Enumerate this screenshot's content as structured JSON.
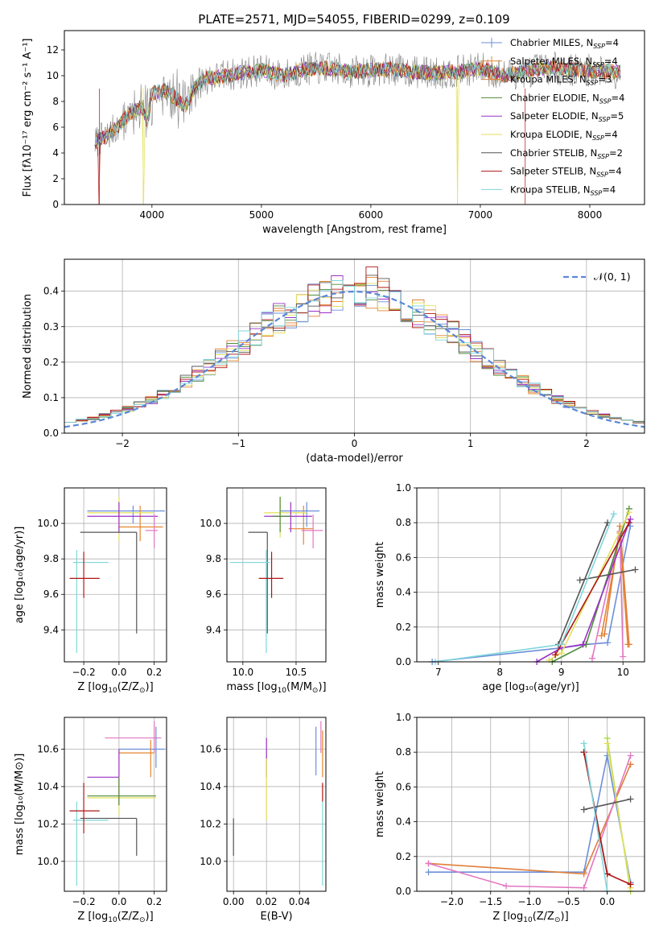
{
  "figure_title": "PLATE=2571, MJD=54055, FIBERID=0299, z=0.109",
  "colors": {
    "Chabrier MILES": "#6b8fd8",
    "Salpeter MILES": "#e6862f",
    "Kroupa MILES": "#e07f3a",
    "Chabrier ELODIE": "#4f8a3c",
    "Salpeter ELODIE": "#9b30c8",
    "Kroupa ELODIE": "#e3e05a",
    "Chabrier STELIB": "#555555",
    "Salpeter STELIB": "#b01515",
    "Kroupa STELIB": "#7fd6dc",
    "spectrum_grey": "#808080",
    "gauss": "#5b87d6",
    "pink": "#e377c2",
    "lime": "#a8d84a"
  },
  "chart_data": [
    {
      "id": "spectrum",
      "type": "line",
      "title": "PLATE=2571, MJD=54055, FIBERID=0299, z=0.109",
      "xlabel": "wavelength [Angstrom, rest frame]",
      "ylabel": "Flux [fλ10⁻¹⁷ erg cm⁻² s⁻¹ A⁻¹]",
      "xlim": [
        3200,
        8500
      ],
      "ylim": [
        0,
        13.5
      ],
      "xticks": [
        4000,
        5000,
        6000,
        7000,
        8000
      ],
      "yticks": [
        0,
        2,
        4,
        6,
        8,
        10,
        12
      ],
      "legend_position": "right",
      "legend": [
        {
          "label": "Chabrier MILES, N",
          "sub": "SSP",
          "suffix": "=4"
        },
        {
          "label": "Salpeter MILES, N",
          "sub": "SSP",
          "suffix": "=4"
        },
        {
          "label": "Kroupa MILES, N",
          "sub": "SSP",
          "suffix": "=3"
        },
        {
          "label": "Chabrier ELODIE, N",
          "sub": "SSP",
          "suffix": "=4"
        },
        {
          "label": "Salpeter ELODIE, N",
          "sub": "SSP",
          "suffix": "=5"
        },
        {
          "label": "Kroupa ELODIE, N",
          "sub": "SSP",
          "suffix": "=4"
        },
        {
          "label": "Chabrier STELIB, N",
          "sub": "SSP",
          "suffix": "=2"
        },
        {
          "label": "Salpeter STELIB, N",
          "sub": "SSP",
          "suffix": "=4"
        },
        {
          "label": "Kroupa STELIB, N",
          "sub": "SSP",
          "suffix": "=4"
        }
      ],
      "continuum": {
        "x": [
          3480,
          3600,
          3700,
          3800,
          3900,
          3960,
          4000,
          4100,
          4200,
          4300,
          4400,
          4500,
          4600,
          4800,
          5000,
          5200,
          5400,
          5600,
          5800,
          6000,
          6200,
          6400,
          6600,
          6800,
          7000,
          7200,
          7400,
          7600,
          7800,
          8000,
          8200,
          8280
        ],
        "y": [
          4.8,
          5.4,
          6.2,
          7.0,
          7.6,
          6.4,
          8.6,
          8.9,
          8.4,
          7.6,
          9.2,
          9.8,
          9.9,
          10.2,
          10.4,
          10.0,
          10.5,
          10.6,
          10.3,
          10.4,
          10.5,
          10.3,
          10.2,
          10.3,
          10.6,
          10.0,
          10.3,
          10.6,
          10.5,
          10.4,
          10.3,
          10.3
        ]
      },
      "dropouts": [
        {
          "series": "Salpeter STELIB",
          "x": 3520
        },
        {
          "series": "Kroupa ELODIE",
          "x": 3920
        },
        {
          "series": "Kroupa ELODIE",
          "x": 6790
        },
        {
          "series": "Salpeter STELIB",
          "x": 7410
        }
      ]
    },
    {
      "id": "residuals",
      "type": "step",
      "xlabel": "(data-model)/error",
      "ylabel": "Normed distribution",
      "xlim": [
        -2.5,
        2.5
      ],
      "ylim": [
        0,
        0.49
      ],
      "xticks": [
        -2,
        -1,
        0,
        1,
        2
      ],
      "yticks": [
        0.0,
        0.1,
        0.2,
        0.3,
        0.4
      ],
      "bin_width": 0.1,
      "legend": "𝒩(0, 1)",
      "legend_position": "top-right",
      "gauss": {
        "mean": 0,
        "sigma": 1
      }
    },
    {
      "id": "age_vs_Z",
      "type": "errorbar",
      "xlabel_main": "Z [log",
      "xlabel_sub": "10",
      "xlabel_rest": "(Z/Z",
      "xlabel_end": ")]",
      "ylabel": "age  [log₁₀(age/yr)]",
      "xlim": [
        -0.31,
        0.27
      ],
      "ylim": [
        9.22,
        10.2
      ],
      "xticks": [
        -0.2,
        0.0,
        0.2
      ],
      "yticks": [
        9.4,
        9.6,
        9.8,
        10.0
      ],
      "points": [
        {
          "c": "Chabrier MILES",
          "x": 0.08,
          "y": 10.07,
          "xlo": -0.18,
          "xhi": 0.26,
          "ylo": 10.0,
          "yhi": 10.1
        },
        {
          "c": "Salpeter MILES",
          "x": 0.12,
          "y": 9.98,
          "xlo": 0.0,
          "xhi": 0.25,
          "ylo": 9.9,
          "yhi": 10.1
        },
        {
          "c": "Kroupa ELODIE",
          "x": 0.0,
          "y": 10.06,
          "xlo": -0.18,
          "xhi": 0.2,
          "ylo": 9.9,
          "yhi": 10.15
        },
        {
          "c": "Salpeter ELODIE",
          "x": 0.0,
          "y": 10.04,
          "xlo": -0.18,
          "xhi": 0.22,
          "ylo": 9.95,
          "yhi": 10.12
        },
        {
          "c": "Chabrier STELIB",
          "x": 0.1,
          "y": 9.95,
          "xlo": -0.22,
          "xhi": 0.1,
          "ylo": 9.38,
          "yhi": 9.95
        },
        {
          "c": "Kroupa STELIB",
          "x": -0.24,
          "y": 9.78,
          "xlo": -0.26,
          "xhi": -0.06,
          "ylo": 9.27,
          "yhi": 9.85
        },
        {
          "c": "Salpeter STELIB",
          "x": -0.2,
          "y": 9.69,
          "xlo": -0.28,
          "xhi": -0.11,
          "ylo": 9.58,
          "yhi": 9.84
        },
        {
          "c": "pink",
          "x": 0.2,
          "y": 9.96,
          "xlo": 0.15,
          "xhi": 0.22,
          "ylo": 9.86,
          "yhi": 10.05
        }
      ]
    },
    {
      "id": "age_vs_mass",
      "type": "errorbar",
      "xlabel_main": "mass [log",
      "xlabel_sub": "10",
      "xlabel_rest": "(M/M",
      "xlabel_end": ")]",
      "xlim": [
        9.85,
        10.78
      ],
      "ylim": [
        9.22,
        10.2
      ],
      "xticks": [
        10.0,
        10.5
      ],
      "yticks": [
        9.4,
        9.6,
        9.8,
        10.0
      ],
      "points": [
        {
          "c": "Chabrier MILES",
          "x": 10.6,
          "y": 10.07,
          "xlo": 10.35,
          "xhi": 10.72,
          "ylo": 9.98,
          "yhi": 10.12
        },
        {
          "c": "Salpeter MILES",
          "x": 10.57,
          "y": 9.97,
          "xlo": 10.43,
          "xhi": 10.66,
          "ylo": 9.88,
          "yhi": 10.1
        },
        {
          "c": "pink",
          "x": 10.66,
          "y": 9.96,
          "xlo": 10.55,
          "xhi": 10.75,
          "ylo": 9.86,
          "yhi": 10.05
        },
        {
          "c": "Kroupa ELODIE",
          "x": 10.35,
          "y": 10.06,
          "xlo": 10.2,
          "xhi": 10.6,
          "ylo": 9.92,
          "yhi": 10.15
        },
        {
          "c": "Salpeter ELODIE",
          "x": 10.45,
          "y": 10.04,
          "xlo": 10.2,
          "xhi": 10.65,
          "ylo": 9.95,
          "yhi": 10.12
        },
        {
          "c": "Chabrier ELODIE",
          "x": 10.35,
          "y": 10.04,
          "xlo": 10.28,
          "xhi": 10.45,
          "ylo": 9.95,
          "yhi": 10.15
        },
        {
          "c": "Chabrier STELIB",
          "x": 10.23,
          "y": 9.95,
          "xlo": 10.05,
          "xhi": 10.23,
          "ylo": 9.38,
          "yhi": 9.95
        },
        {
          "c": "Kroupa STELIB",
          "x": 10.22,
          "y": 9.78,
          "xlo": 9.88,
          "xhi": 10.25,
          "ylo": 9.27,
          "yhi": 9.85
        },
        {
          "c": "Salpeter STELIB",
          "x": 10.27,
          "y": 9.69,
          "xlo": 10.15,
          "xhi": 10.38,
          "ylo": 9.58,
          "yhi": 9.84
        }
      ]
    },
    {
      "id": "weight_vs_age",
      "type": "line",
      "xlabel": "age  [log₁₀(age/yr)]",
      "ylabel": "mass weight",
      "xlim": [
        6.65,
        10.35
      ],
      "ylim": [
        0,
        1.0
      ],
      "xticks": [
        7,
        8,
        9,
        10
      ],
      "yticks": [
        0.0,
        0.2,
        0.4,
        0.6,
        0.8,
        1.0
      ],
      "series": [
        {
          "c": "Chabrier MILES",
          "x": [
            6.9,
            9.0,
            9.4,
            9.75,
            10.12
          ],
          "y": [
            0.0,
            0.08,
            0.1,
            0.11,
            0.78
          ]
        },
        {
          "c": "Salpeter MILES",
          "x": [
            9.65,
            9.95,
            10.08
          ],
          "y": [
            0.15,
            0.74,
            0.1
          ]
        },
        {
          "c": "Kroupa MILES",
          "x": [
            9.7,
            9.95,
            10.1
          ],
          "y": [
            0.16,
            0.78,
            0.1
          ]
        },
        {
          "c": "pink",
          "x": [
            9.5,
            9.95,
            10.0
          ],
          "y": [
            0.02,
            0.75,
            0.03
          ]
        },
        {
          "c": "Chabrier ELODIE",
          "x": [
            8.85,
            9.4,
            10.1
          ],
          "y": [
            0.0,
            0.1,
            0.88
          ]
        },
        {
          "c": "Salpeter ELODIE",
          "x": [
            8.6,
            9.0,
            9.35,
            10.12
          ],
          "y": [
            0.0,
            0.08,
            0.1,
            0.82
          ]
        },
        {
          "c": "Kroupa ELODIE",
          "x": [
            8.8,
            9.0,
            10.1
          ],
          "y": [
            0.01,
            0.05,
            0.86
          ]
        },
        {
          "c": "Chabrier STELIB",
          "x": [
            9.3,
            10.2
          ],
          "y": [
            0.47,
            0.53
          ]
        },
        {
          "c": "Chabrier STELIB",
          "x": [
            8.95,
            9.75
          ],
          "y": [
            0.1,
            0.8
          ]
        },
        {
          "c": "Salpeter STELIB",
          "x": [
            8.9,
            9.0,
            10.1
          ],
          "y": [
            0.04,
            0.1,
            0.8
          ]
        },
        {
          "c": "Kroupa STELIB",
          "x": [
            6.95,
            9.0,
            9.85
          ],
          "y": [
            0.0,
            0.1,
            0.85
          ]
        }
      ]
    },
    {
      "id": "mass_vs_Z",
      "type": "errorbar",
      "xlabel_main": "Z [log",
      "xlabel_sub": "10",
      "xlabel_rest": "(Z/Z",
      "xlabel_end": ")]",
      "ylabel": "mass [log₁₀(M/M⊙)]",
      "xlim": [
        -0.31,
        0.27
      ],
      "ylim": [
        9.84,
        10.77
      ],
      "xticks": [
        -0.2,
        0.0,
        0.2
      ],
      "yticks": [
        10.0,
        10.2,
        10.4,
        10.6
      ],
      "points": [
        {
          "c": "pink",
          "x": 0.2,
          "y": 10.66,
          "xlo": -0.08,
          "xhi": 0.24,
          "ylo": 10.58,
          "yhi": 10.75
        },
        {
          "c": "Chabrier MILES",
          "x": 0.21,
          "y": 10.6,
          "xlo": 0.0,
          "xhi": 0.26,
          "ylo": 10.5,
          "yhi": 10.72
        },
        {
          "c": "Salpeter MILES",
          "x": 0.18,
          "y": 10.58,
          "xlo": 0.0,
          "xhi": 0.2,
          "ylo": 10.45,
          "yhi": 10.65
        },
        {
          "c": "Salpeter ELODIE",
          "x": 0.0,
          "y": 10.45,
          "xlo": -0.18,
          "xhi": 0.0,
          "ylo": 10.3,
          "yhi": 10.6
        },
        {
          "c": "Kroupa ELODIE",
          "x": 0.0,
          "y": 10.34,
          "xlo": -0.18,
          "xhi": 0.21,
          "ylo": 10.25,
          "yhi": 10.45
        },
        {
          "c": "Chabrier ELODIE",
          "x": 0.0,
          "y": 10.35,
          "xlo": -0.18,
          "xhi": 0.21,
          "ylo": 10.3,
          "yhi": 10.45
        },
        {
          "c": "Chabrier STELIB",
          "x": 0.1,
          "y": 10.23,
          "xlo": -0.22,
          "xhi": 0.1,
          "ylo": 10.03,
          "yhi": 10.23
        },
        {
          "c": "Kroupa STELIB",
          "x": -0.24,
          "y": 10.22,
          "xlo": -0.26,
          "xhi": -0.06,
          "ylo": 9.87,
          "yhi": 10.32
        },
        {
          "c": "Salpeter STELIB",
          "x": -0.2,
          "y": 10.27,
          "xlo": -0.28,
          "xhi": -0.11,
          "ylo": 10.15,
          "yhi": 10.42
        }
      ]
    },
    {
      "id": "mass_vs_EBV",
      "type": "errorbar",
      "xlabel": "E(B-V)",
      "xlim": [
        -0.004,
        0.056
      ],
      "ylim": [
        9.84,
        10.77
      ],
      "xticks": [
        0.0,
        0.02,
        0.04
      ],
      "yticks": [
        10.0,
        10.2,
        10.4,
        10.6
      ],
      "points": [
        {
          "c": "Chabrier STELIB",
          "x": 0.0,
          "y": 10.23,
          "ylo": 10.03,
          "yhi": 10.23
        },
        {
          "c": "Salpeter ELODIE",
          "x": 0.02,
          "y": 10.55,
          "ylo": 10.45,
          "yhi": 10.66
        },
        {
          "c": "Kroupa ELODIE",
          "x": 0.02,
          "y": 10.35,
          "ylo": 10.22,
          "yhi": 10.55
        },
        {
          "c": "Chabrier MILES",
          "x": 0.05,
          "y": 10.6,
          "ylo": 10.46,
          "yhi": 10.72
        },
        {
          "c": "pink",
          "x": 0.053,
          "y": 10.66,
          "ylo": 10.58,
          "yhi": 10.75
        },
        {
          "c": "Salpeter MILES",
          "x": 0.054,
          "y": 10.58,
          "ylo": 10.45,
          "yhi": 10.7
        },
        {
          "c": "Salpeter STELIB",
          "x": 0.054,
          "y": 10.35,
          "ylo": 10.32,
          "yhi": 10.42
        },
        {
          "c": "Kroupa STELIB",
          "x": 0.054,
          "y": 10.2,
          "ylo": 9.87,
          "yhi": 10.32
        }
      ]
    },
    {
      "id": "weight_vs_Z",
      "type": "line",
      "xlabel_main": "Z [log",
      "xlabel_sub": "10",
      "xlabel_rest": "(Z/Z",
      "xlabel_end": ")]",
      "ylabel": "mass weight",
      "xlim": [
        -2.45,
        0.48
      ],
      "ylim": [
        0,
        1.0
      ],
      "xticks": [
        -2.0,
        -1.5,
        -1.0,
        -0.5,
        0.0
      ],
      "yticks": [
        0.0,
        0.2,
        0.4,
        0.6,
        0.8,
        1.0
      ],
      "series": [
        {
          "c": "Chabrier MILES",
          "x": [
            -2.3,
            -0.3,
            0.0,
            0.3
          ],
          "y": [
            0.11,
            0.11,
            0.78,
            0.05
          ]
        },
        {
          "c": "Kroupa MILES",
          "x": [
            -2.3,
            -0.3,
            0.3
          ],
          "y": [
            0.16,
            0.1,
            0.73
          ]
        },
        {
          "c": "pink",
          "x": [
            -2.3,
            -1.3,
            -0.3,
            0.3
          ],
          "y": [
            0.16,
            0.03,
            0.02,
            0.78
          ]
        },
        {
          "c": "lime",
          "x": [
            0.0,
            0.3
          ],
          "y": [
            0.88,
            0.0
          ]
        },
        {
          "c": "Kroupa ELODIE",
          "x": [
            0.0,
            0.3
          ],
          "y": [
            0.85,
            0.02
          ]
        },
        {
          "c": "Chabrier STELIB",
          "x": [
            -0.3,
            0.3
          ],
          "y": [
            0.47,
            0.53
          ]
        },
        {
          "c": "Chabrier STELIB",
          "x": [
            -0.3,
            0.0
          ],
          "y": [
            0.8,
            0.1
          ]
        },
        {
          "c": "Salpeter STELIB",
          "x": [
            -0.3,
            0.0,
            0.3
          ],
          "y": [
            0.8,
            0.1,
            0.04
          ]
        },
        {
          "c": "Kroupa STELIB",
          "x": [
            -0.3,
            0.0
          ],
          "y": [
            0.85,
            0.0
          ]
        }
      ]
    }
  ]
}
